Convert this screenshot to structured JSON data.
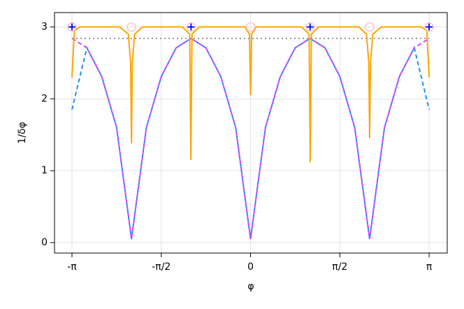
{
  "chart_data": {
    "type": "line",
    "x_label": "φ",
    "y_label": "1/δφ",
    "xlim": [
      -3.449,
      3.46
    ],
    "ylim": [
      -0.146,
      3.2
    ],
    "xticks": [
      {
        "value": -3.1416,
        "label": "-π"
      },
      {
        "value": -1.5708,
        "label": "-π/2"
      },
      0,
      {
        "value": 1.5708,
        "label": "π/2"
      },
      {
        "value": 3.1416,
        "label": "π"
      }
    ],
    "yticks": [
      0,
      1,
      2,
      3
    ],
    "grid": true,
    "series": [
      {
        "color": "#1e90ff",
        "style": "dashed",
        "x": [
          -3.1416,
          -2.8798,
          -2.618,
          -2.3562,
          -2.0944,
          -1.8326,
          -1.5708,
          -1.309,
          -1.0472,
          -0.7854,
          -0.5236,
          -0.2618,
          0,
          0.2618,
          0.5236,
          0.7854,
          1.0472,
          1.309,
          1.5708,
          1.8326,
          2.0944,
          2.3562,
          2.618,
          2.8798,
          3.1416
        ],
        "values": [
          1.85,
          2.71,
          2.31,
          1.6,
          0.05,
          1.6,
          2.31,
          2.71,
          2.84,
          2.71,
          2.31,
          1.6,
          0.05,
          1.6,
          2.31,
          2.71,
          2.84,
          2.71,
          2.31,
          1.6,
          0.05,
          1.6,
          2.31,
          2.71,
          1.85
        ]
      },
      {
        "color": "#e040fb",
        "style": "dashed",
        "x": [
          -3.1416,
          -2.8798,
          -2.618,
          -2.3562,
          -2.0944,
          -1.8326,
          -1.5708,
          -1.309,
          -1.0472,
          -0.7854,
          -0.5236,
          -0.2618,
          0,
          0.2618,
          0.5236,
          0.7854,
          1.0472,
          1.309,
          1.5708,
          1.8326,
          2.0944,
          2.3562,
          2.618,
          2.8798,
          3.1416
        ],
        "values": [
          2.84,
          2.71,
          2.31,
          1.6,
          0.05,
          1.6,
          2.31,
          2.71,
          2.84,
          2.71,
          2.31,
          1.6,
          0.05,
          1.6,
          2.31,
          2.71,
          2.84,
          2.71,
          2.31,
          1.6,
          0.05,
          1.6,
          2.31,
          2.71,
          2.84
        ]
      },
      {
        "color": "#ffa500",
        "style": "solid",
        "x": [
          -3.1416,
          -3.1,
          -3.0,
          -2.3,
          -2.15,
          -2.11,
          -2.095,
          -2.08,
          -2.04,
          -1.9,
          -1.2,
          -1.07,
          -1.05,
          -1.03,
          -0.9,
          -0.1,
          -0.02,
          0,
          0.02,
          0.1,
          0.9,
          1.03,
          1.05,
          1.07,
          1.2,
          1.9,
          2.04,
          2.08,
          2.095,
          2.11,
          2.15,
          2.3,
          3.0,
          3.1,
          3.1416
        ],
        "values": [
          2.3,
          2.95,
          3.0,
          3.0,
          2.9,
          2.5,
          1.38,
          2.5,
          2.9,
          3.0,
          3.0,
          2.9,
          1.15,
          2.9,
          3.0,
          3.0,
          2.9,
          2.05,
          2.9,
          3.0,
          3.0,
          2.9,
          1.12,
          2.9,
          3.0,
          3.0,
          2.9,
          2.5,
          1.45,
          2.5,
          2.9,
          3.0,
          3.0,
          2.95,
          2.3
        ]
      },
      {
        "color": "#999999",
        "style": "dotted",
        "x": [
          -3.1416,
          3.1416
        ],
        "values": [
          2.84,
          2.84
        ]
      },
      {
        "color": "#ffb6c1",
        "style": "none",
        "marker": "circle",
        "x": [
          -3.1416,
          -2.0944,
          -1.0472,
          0,
          1.0472,
          2.0944,
          3.1416
        ],
        "values": [
          3,
          3,
          3,
          3,
          3,
          3,
          3
        ]
      },
      {
        "color": "#0000ff",
        "style": "none",
        "marker": "plus",
        "x": [
          -3.1416,
          -1.0472,
          1.0472,
          3.1416
        ],
        "values": [
          3,
          3,
          3,
          3
        ]
      }
    ]
  }
}
